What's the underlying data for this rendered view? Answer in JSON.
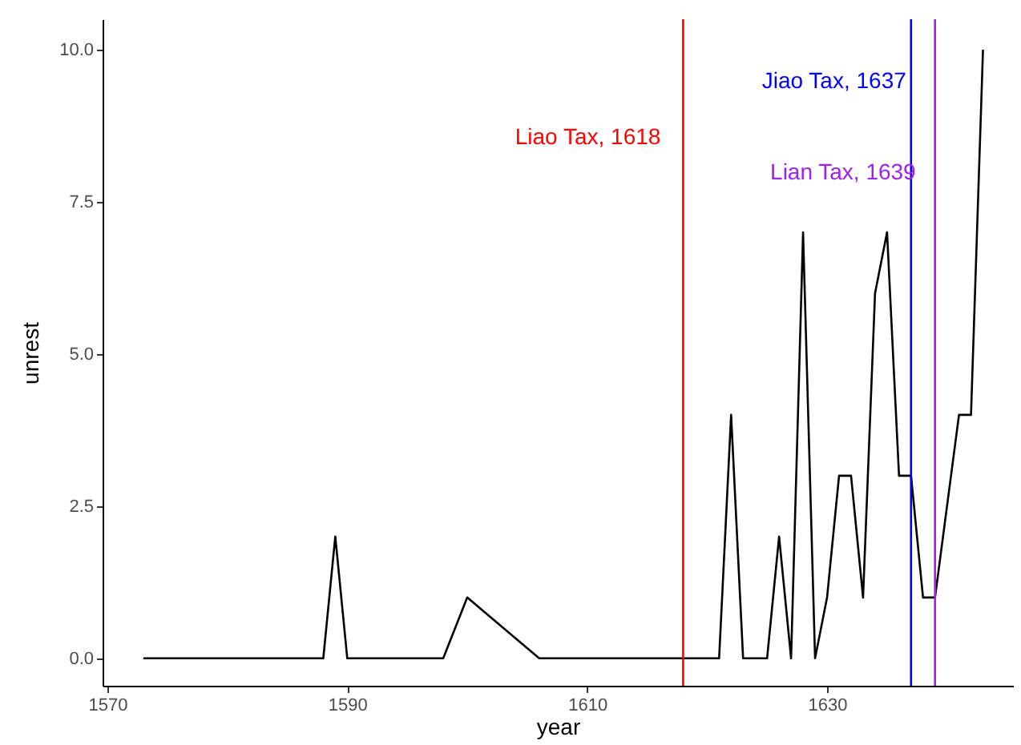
{
  "chart_data": {
    "type": "line",
    "xlabel": "year",
    "ylabel": "unrest",
    "x": [
      1573,
      1588,
      1589,
      1590,
      1598,
      1600,
      1606,
      1621,
      1622,
      1623,
      1625,
      1626,
      1627,
      1628,
      1629,
      1630,
      1631,
      1632,
      1633,
      1634,
      1635,
      1636,
      1637,
      1638,
      1639,
      1641,
      1642,
      1643
    ],
    "series": [
      {
        "color": "#000000",
        "values": [
          0,
          0,
          2,
          0,
          0,
          1,
          0,
          0,
          4,
          0,
          0,
          2,
          0,
          7,
          0,
          1,
          3,
          3,
          1,
          6,
          7,
          3,
          3,
          1,
          1,
          4,
          4,
          10
        ]
      }
    ],
    "xlim": [
      1569.6,
      1645.5
    ],
    "xticks": [
      1570,
      1590,
      1610,
      1630
    ],
    "ylim": [
      -0.45,
      10.5
    ],
    "yticks": [
      {
        "value": 0,
        "label": "0.0"
      },
      {
        "value": 2.5,
        "label": "2.5"
      },
      {
        "value": 5,
        "label": "5.0"
      },
      {
        "value": 7.5,
        "label": "7.5"
      },
      {
        "value": 10,
        "label": "10.0"
      }
    ],
    "grid": false,
    "marker": "none",
    "line_style": "solid",
    "ref_lines": [
      {
        "axis": "x",
        "value": 1618,
        "label": "Liao Tax, 1618",
        "color": "#ff0000"
      },
      {
        "axis": "x",
        "value": 1637,
        "label": "Jiao Tax, 1637",
        "color": "#0000ff"
      },
      {
        "axis": "x",
        "value": 1639,
        "label": "Lian Tax, 1639",
        "color": "#a020f0"
      }
    ]
  }
}
